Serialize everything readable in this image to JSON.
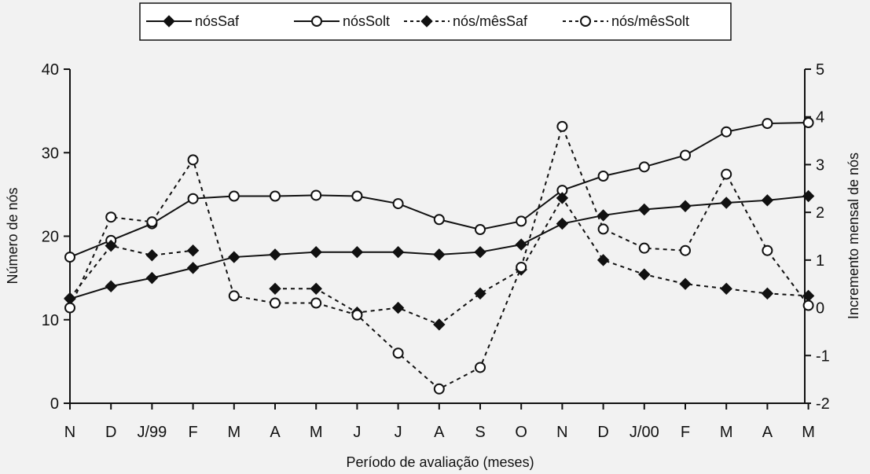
{
  "chart_data": {
    "type": "line",
    "xlabel": "Período de avaliação (meses)",
    "ylabel_left": "Número de nós",
    "ylabel_right": "Incremento mensal de nós",
    "categories": [
      "N",
      "D",
      "J/99",
      "F",
      "M",
      "A",
      "M",
      "J",
      "J",
      "A",
      "S",
      "O",
      "N",
      "D",
      "J/00",
      "F",
      "M",
      "A",
      "M"
    ],
    "y_left_range": [
      0,
      40
    ],
    "y_left_ticks": [
      "0",
      "10",
      "20",
      "30",
      "40"
    ],
    "y_right_range": [
      -2,
      5
    ],
    "y_right_ticks": [
      "-2",
      "-1",
      "0",
      "1",
      "2",
      "3",
      "4",
      "5"
    ],
    "grid": false,
    "legend_position": "top",
    "series": [
      {
        "name": "nósSaf",
        "axis": "left",
        "style": "solid",
        "marker": "filled-diamond",
        "values": [
          12.5,
          14,
          15,
          16.2,
          17.5,
          17.8,
          18.1,
          18.1,
          18.1,
          17.8,
          18.1,
          19,
          21.5,
          22.5,
          23.2,
          23.6,
          24.0,
          24.3,
          24.8
        ]
      },
      {
        "name": "nósSolt",
        "axis": "left",
        "style": "solid",
        "marker": "open-circle",
        "values": [
          17.5,
          19.5,
          21.5,
          24.5,
          24.8,
          24.8,
          24.9,
          24.8,
          23.9,
          22,
          20.8,
          21.8,
          25.5,
          27.2,
          28.3,
          29.7,
          32.5,
          33.5,
          33.6
        ]
      },
      {
        "name": "nós/mêsSaf",
        "axis": "right",
        "style": "dotted",
        "marker": "filled-diamond",
        "values": [
          0.2,
          1.3,
          1.1,
          1.2,
          null,
          0.4,
          0.4,
          -0.1,
          0.0,
          -0.35,
          0.3,
          0.8,
          2.3,
          1.0,
          0.7,
          0.5,
          0.4,
          0.3,
          0.25
        ]
      },
      {
        "name": "nós/mêsSolt",
        "axis": "right",
        "style": "dotted",
        "marker": "open-circle",
        "values": [
          0.0,
          1.9,
          1.8,
          3.1,
          0.25,
          0.1,
          0.1,
          -0.15,
          -0.95,
          -1.7,
          -1.25,
          0.85,
          3.8,
          1.65,
          1.25,
          1.2,
          2.8,
          1.2,
          0.05
        ]
      }
    ]
  }
}
